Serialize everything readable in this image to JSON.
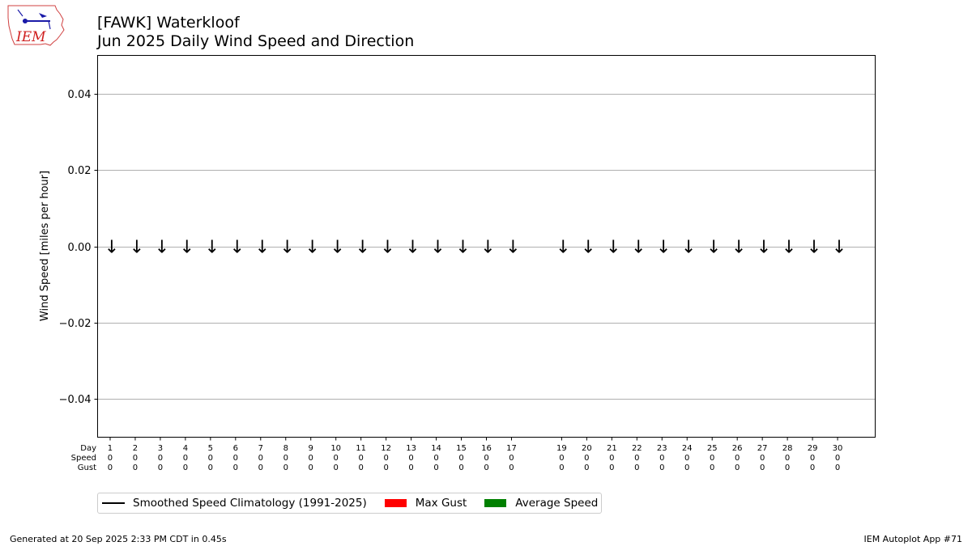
{
  "logo": {
    "text": "IEM"
  },
  "title": {
    "line1": "[FAWK] Waterkloof",
    "line2": "Jun 2025 Daily Wind Speed and Direction"
  },
  "chart_data": {
    "type": "bar",
    "ylabel": "Wind Speed [miles per hour]",
    "ylim": [
      -0.05,
      0.05
    ],
    "yticks": [
      -0.04,
      -0.02,
      0.0,
      0.02,
      0.04
    ],
    "ytick_labels": [
      "−0.04",
      "−0.02",
      "0.00",
      "0.02",
      "0.04"
    ],
    "xlim": [
      0.5,
      31.5
    ],
    "grid": "horizontal",
    "row_headers": [
      "Day",
      "Speed",
      "Gust"
    ],
    "days": [
      1,
      2,
      3,
      4,
      5,
      6,
      7,
      8,
      9,
      10,
      11,
      12,
      13,
      14,
      15,
      16,
      17,
      19,
      20,
      21,
      22,
      23,
      24,
      25,
      26,
      27,
      28,
      29,
      30
    ],
    "speed": [
      0,
      0,
      0,
      0,
      0,
      0,
      0,
      0,
      0,
      0,
      0,
      0,
      0,
      0,
      0,
      0,
      0,
      0,
      0,
      0,
      0,
      0,
      0,
      0,
      0,
      0,
      0,
      0,
      0
    ],
    "gust": [
      0,
      0,
      0,
      0,
      0,
      0,
      0,
      0,
      0,
      0,
      0,
      0,
      0,
      0,
      0,
      0,
      0,
      0,
      0,
      0,
      0,
      0,
      0,
      0,
      0,
      0,
      0,
      0,
      0
    ],
    "arrow_glyph": "↓",
    "series": [
      {
        "name": "Smoothed Speed Climatology (1991-2025)",
        "color": "#000000",
        "kind": "line"
      },
      {
        "name": "Max Gust",
        "color": "#ff0000",
        "kind": "bar"
      },
      {
        "name": "Average Speed",
        "color": "#008000",
        "kind": "bar"
      }
    ],
    "legend_position": "bottom-left"
  },
  "footer": {
    "left": "Generated at 20 Sep 2025 2:33 PM CDT in 0.45s",
    "right": "IEM Autoplot App #71"
  }
}
